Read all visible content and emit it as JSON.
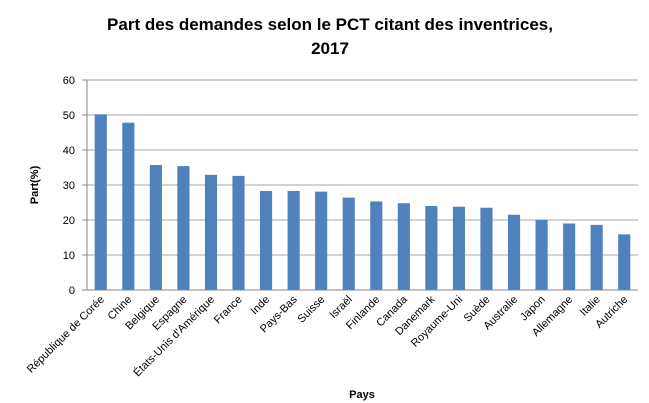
{
  "chart_data": {
    "type": "bar",
    "title": [
      "Part des demandes selon le PCT citant des inventrices,",
      "2017"
    ],
    "ylabel": "Part(%)",
    "xlabel": "Pays",
    "categories": [
      "République de Corée",
      "Chine",
      "Belgique",
      "Espagne",
      "États-Unis d'Amérique",
      "France",
      "Inde",
      "Pays-Bas",
      "Suisse",
      "Israël",
      "Finlande",
      "Canada",
      "Danemark",
      "Royaume-Uni",
      "Suède",
      "Australie",
      "Japon",
      "Allemagne",
      "Italie",
      "Autriche"
    ],
    "values": [
      50.2,
      47.8,
      35.7,
      35.4,
      32.9,
      32.6,
      28.3,
      28.3,
      28.1,
      26.4,
      25.3,
      24.8,
      24.0,
      23.8,
      23.5,
      21.5,
      20.0,
      19.0,
      18.6,
      15.9
    ],
    "color": "#4f81bd",
    "ylim": [
      0,
      60
    ],
    "yticks": [
      0,
      10,
      20,
      30,
      40,
      50,
      60
    ],
    "grid": true
  }
}
